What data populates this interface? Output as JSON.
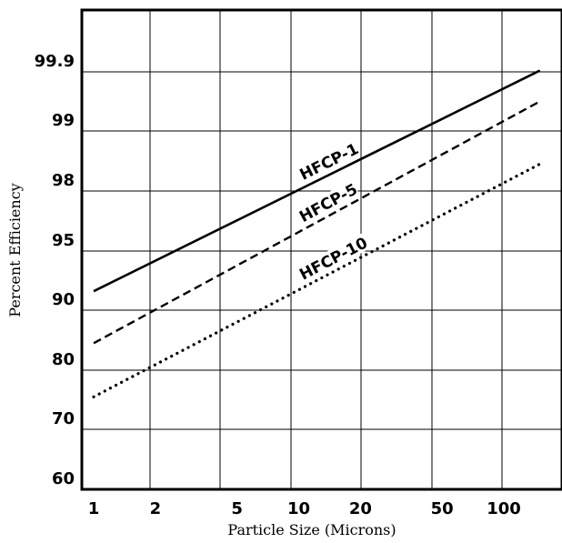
{
  "chart_data": {
    "type": "line",
    "xlabel": "Particle Size (Microns)",
    "ylabel": "Percent Efficiency",
    "x_scale": "log",
    "y_scale": "probability",
    "x_ticks": [
      "1",
      "2",
      "5",
      "10",
      "20",
      "50",
      "100"
    ],
    "x_tick_values": [
      1,
      2,
      5,
      10,
      20,
      50,
      100
    ],
    "y_ticks": [
      "60",
      "70",
      "80",
      "90",
      "95",
      "98",
      "99",
      "99.9"
    ],
    "y_tick_values": [
      60,
      70,
      80,
      90,
      95,
      98,
      99,
      99.9
    ],
    "grid": true,
    "series": [
      {
        "name": "HFCP-1",
        "style": "solid",
        "x": [
          1,
          150
        ],
        "y": [
          91.6,
          99.92
        ]
      },
      {
        "name": "HFCP-5",
        "style": "dashed",
        "x": [
          1,
          150
        ],
        "y": [
          84.5,
          99.45
        ]
      },
      {
        "name": "HFCP-10",
        "style": "dotted",
        "x": [
          1,
          150
        ],
        "y": [
          75.5,
          98.45
        ]
      }
    ]
  }
}
